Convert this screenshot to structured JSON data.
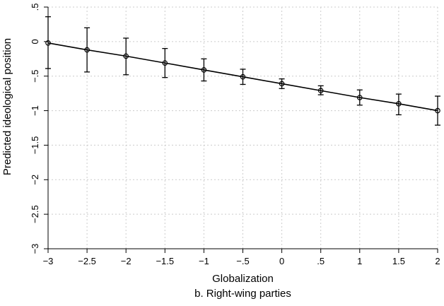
{
  "chart_data": {
    "type": "line",
    "title": "",
    "caption": "b. Right-wing parties",
    "xlabel": "Globalization",
    "ylabel": "Predicted ideological position",
    "xlim": [
      -3,
      2
    ],
    "ylim": [
      -3,
      0.5
    ],
    "x_ticks": [
      {
        "value": -3,
        "label": "−3"
      },
      {
        "value": -2.5,
        "label": "−2.5"
      },
      {
        "value": -2,
        "label": "−2"
      },
      {
        "value": -1.5,
        "label": "−1.5"
      },
      {
        "value": -1,
        "label": "−1"
      },
      {
        "value": -0.5,
        "label": "−.5"
      },
      {
        "value": 0,
        "label": "0"
      },
      {
        "value": 0.5,
        "label": ".5"
      },
      {
        "value": 1,
        "label": "1"
      },
      {
        "value": 1.5,
        "label": "1.5"
      },
      {
        "value": 2,
        "label": "2"
      }
    ],
    "y_ticks": [
      {
        "value": 0.5,
        "label": ".5"
      },
      {
        "value": 0,
        "label": "0"
      },
      {
        "value": -0.5,
        "label": "−.5"
      },
      {
        "value": -1,
        "label": "−1"
      },
      {
        "value": -1.5,
        "label": "−1.5"
      },
      {
        "value": -2,
        "label": "−2"
      },
      {
        "value": -2.5,
        "label": "−2.5"
      },
      {
        "value": -3,
        "label": "−3"
      }
    ],
    "grid": true,
    "series": [
      {
        "x": [
          -3,
          -2.5,
          -2,
          -1.5,
          -1,
          -0.5,
          0,
          0.5,
          1,
          1.5,
          2
        ],
        "y": [
          -0.02,
          -0.12,
          -0.21,
          -0.31,
          -0.41,
          -0.51,
          -0.61,
          -0.71,
          -0.81,
          -0.9,
          -1.0
        ],
        "ci_low": [
          -0.39,
          -0.44,
          -0.48,
          -0.52,
          -0.57,
          -0.62,
          -0.68,
          -0.77,
          -0.92,
          -1.06,
          -1.21
        ],
        "ci_high": [
          0.36,
          0.2,
          0.05,
          -0.1,
          -0.25,
          -0.4,
          -0.54,
          -0.64,
          -0.7,
          -0.76,
          -0.79
        ]
      }
    ]
  }
}
